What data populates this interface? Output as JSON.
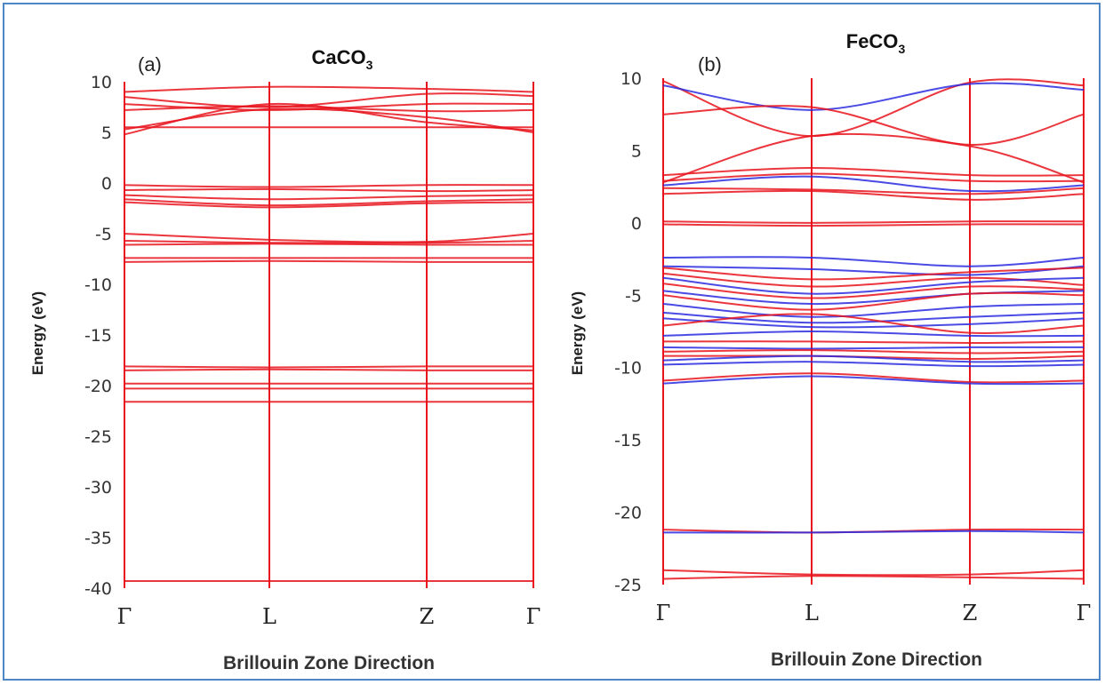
{
  "colors": {
    "spin_up": "#e8131c",
    "spin_down": "#2a2ae0",
    "frame": "#4f86c6"
  },
  "chart_data": [
    {
      "type": "line",
      "panel_label": "(a)",
      "title": "CaCO3",
      "title_main": "CaCO",
      "title_sub": "3",
      "xlabel": "Brillouin  Zone Direction",
      "ylabel": "Energy (eV)",
      "categories": [
        "Γ",
        "L",
        "Z",
        "Γ"
      ],
      "ylim": [
        -40,
        10
      ],
      "yticks": [
        10,
        5,
        0,
        -5,
        -10,
        -15,
        -20,
        -25,
        -30,
        -35,
        -40
      ],
      "grid": "vertical lines at high-symmetry points",
      "series": [
        {
          "color": "spin_up",
          "values": [
            9.0,
            9.5,
            9.3,
            9.0
          ]
        },
        {
          "color": "spin_up",
          "values": [
            8.5,
            7.5,
            8.8,
            8.6
          ]
        },
        {
          "color": "spin_up",
          "values": [
            7.8,
            7.2,
            7.8,
            7.8
          ]
        },
        {
          "color": "spin_up",
          "values": [
            7.2,
            7.6,
            7.1,
            7.2
          ]
        },
        {
          "color": "spin_up",
          "values": [
            5.3,
            7.3,
            6.5,
            5.0
          ]
        },
        {
          "color": "spin_up",
          "values": [
            4.8,
            7.8,
            6.0,
            5.2
          ]
        },
        {
          "color": "spin_up",
          "values": [
            5.5,
            5.5,
            5.5,
            5.5
          ]
        },
        {
          "color": "spin_up",
          "values": [
            -0.2,
            -0.4,
            -0.2,
            -0.2
          ]
        },
        {
          "color": "spin_up",
          "values": [
            -0.7,
            -0.6,
            -0.8,
            -0.7
          ]
        },
        {
          "color": "spin_up",
          "values": [
            -1.2,
            -1.6,
            -1.3,
            -1.2
          ]
        },
        {
          "color": "spin_up",
          "values": [
            -1.6,
            -2.2,
            -1.8,
            -1.6
          ]
        },
        {
          "color": "spin_up",
          "values": [
            -1.9,
            -2.4,
            -2.0,
            -1.9
          ]
        },
        {
          "color": "spin_up",
          "values": [
            -5.0,
            -5.6,
            -5.8,
            -5.0
          ]
        },
        {
          "color": "spin_up",
          "values": [
            -5.7,
            -5.9,
            -5.9,
            -5.7
          ]
        },
        {
          "color": "spin_up",
          "values": [
            -6.1,
            -6.0,
            -6.1,
            -6.1
          ]
        },
        {
          "color": "spin_up",
          "values": [
            -7.4,
            -7.4,
            -7.4,
            -7.4
          ]
        },
        {
          "color": "spin_up",
          "values": [
            -7.8,
            -7.7,
            -7.8,
            -7.8
          ]
        },
        {
          "color": "spin_up",
          "values": [
            -18.1,
            -18.2,
            -18.1,
            -18.1
          ]
        },
        {
          "color": "spin_up",
          "values": [
            -18.5,
            -18.4,
            -18.5,
            -18.5
          ]
        },
        {
          "color": "spin_up",
          "values": [
            -19.8,
            -19.8,
            -19.8,
            -19.8
          ]
        },
        {
          "color": "spin_up",
          "values": [
            -20.3,
            -20.3,
            -20.3,
            -20.3
          ]
        },
        {
          "color": "spin_up",
          "values": [
            -21.6,
            -21.6,
            -21.6,
            -21.6
          ]
        },
        {
          "color": "spin_up",
          "values": [
            -39.3,
            -39.3,
            -39.3,
            -39.3
          ]
        }
      ]
    },
    {
      "type": "line",
      "panel_label": "(b)",
      "title": "FeCO3",
      "title_main": "FeCO",
      "title_sub": "3",
      "xlabel": "Brillouin  Zone Direction",
      "ylabel": "Energy (eV)",
      "categories": [
        "Γ",
        "L",
        "Z",
        "Γ"
      ],
      "ylim": [
        -25,
        10
      ],
      "yticks": [
        10,
        5,
        0,
        -5,
        -10,
        -15,
        -20,
        -25
      ],
      "grid": "vertical lines at high-symmetry points",
      "series": [
        {
          "color": "spin_up",
          "values": [
            9.8,
            6.0,
            9.7,
            9.5
          ]
        },
        {
          "color": "spin_down",
          "values": [
            9.5,
            7.8,
            9.6,
            9.2
          ]
        },
        {
          "color": "spin_up",
          "values": [
            7.5,
            8.0,
            5.4,
            7.5
          ]
        },
        {
          "color": "spin_up",
          "values": [
            2.8,
            6.0,
            5.3,
            2.8
          ]
        },
        {
          "color": "spin_up",
          "values": [
            3.3,
            3.8,
            3.3,
            3.3
          ]
        },
        {
          "color": "spin_up",
          "values": [
            2.9,
            3.4,
            2.9,
            2.9
          ]
        },
        {
          "color": "spin_down",
          "values": [
            2.6,
            3.2,
            2.2,
            2.6
          ]
        },
        {
          "color": "spin_up",
          "values": [
            2.4,
            2.3,
            2.0,
            2.4
          ]
        },
        {
          "color": "spin_up",
          "values": [
            2.0,
            2.2,
            1.6,
            2.0
          ]
        },
        {
          "color": "spin_up",
          "values": [
            0.1,
            0.0,
            0.1,
            0.1
          ]
        },
        {
          "color": "spin_up",
          "values": [
            -0.1,
            -0.2,
            -0.1,
            -0.1
          ]
        },
        {
          "color": "spin_down",
          "values": [
            -2.4,
            -2.4,
            -3.0,
            -2.4
          ]
        },
        {
          "color": "spin_down",
          "values": [
            -3.0,
            -3.2,
            -3.6,
            -3.0
          ]
        },
        {
          "color": "spin_up",
          "values": [
            -3.1,
            -3.9,
            -3.4,
            -3.1
          ]
        },
        {
          "color": "spin_up",
          "values": [
            -3.5,
            -4.4,
            -3.8,
            -4.3
          ]
        },
        {
          "color": "spin_down",
          "values": [
            -3.8,
            -4.9,
            -4.1,
            -3.8
          ]
        },
        {
          "color": "spin_up",
          "values": [
            -4.2,
            -5.2,
            -4.4,
            -4.6
          ]
        },
        {
          "color": "spin_down",
          "values": [
            -4.7,
            -5.6,
            -4.9,
            -4.7
          ]
        },
        {
          "color": "spin_up",
          "values": [
            -5.0,
            -6.0,
            -4.9,
            -5.0
          ]
        },
        {
          "color": "spin_down",
          "values": [
            -5.6,
            -6.5,
            -5.8,
            -5.6
          ]
        },
        {
          "color": "spin_down",
          "values": [
            -6.2,
            -6.9,
            -6.5,
            -6.2
          ]
        },
        {
          "color": "spin_down",
          "values": [
            -6.6,
            -7.2,
            -7.0,
            -6.6
          ]
        },
        {
          "color": "spin_up",
          "values": [
            -7.1,
            -6.3,
            -7.6,
            -7.1
          ]
        },
        {
          "color": "spin_down",
          "values": [
            -7.8,
            -7.5,
            -7.8,
            -7.8
          ]
        },
        {
          "color": "spin_up",
          "values": [
            -8.2,
            -8.2,
            -8.3,
            -8.2
          ]
        },
        {
          "color": "spin_down",
          "values": [
            -8.6,
            -8.7,
            -8.6,
            -8.6
          ]
        },
        {
          "color": "spin_up",
          "values": [
            -8.9,
            -8.8,
            -9.0,
            -8.9
          ]
        },
        {
          "color": "spin_up",
          "values": [
            -9.2,
            -9.2,
            -9.4,
            -9.2
          ]
        },
        {
          "color": "spin_down",
          "values": [
            -9.5,
            -9.2,
            -9.6,
            -9.5
          ]
        },
        {
          "color": "spin_down",
          "values": [
            -9.8,
            -9.6,
            -9.9,
            -9.8
          ]
        },
        {
          "color": "spin_up",
          "values": [
            -10.9,
            -10.4,
            -11.0,
            -10.9
          ]
        },
        {
          "color": "spin_down",
          "values": [
            -11.1,
            -10.6,
            -11.1,
            -11.1
          ]
        },
        {
          "color": "spin_up",
          "values": [
            -21.2,
            -21.4,
            -21.2,
            -21.2
          ]
        },
        {
          "color": "spin_down",
          "values": [
            -21.4,
            -21.4,
            -21.3,
            -21.4
          ]
        },
        {
          "color": "spin_up",
          "values": [
            -24.0,
            -24.3,
            -24.3,
            -24.0
          ]
        },
        {
          "color": "spin_up",
          "values": [
            -24.6,
            -24.4,
            -24.5,
            -24.6
          ]
        }
      ]
    }
  ]
}
